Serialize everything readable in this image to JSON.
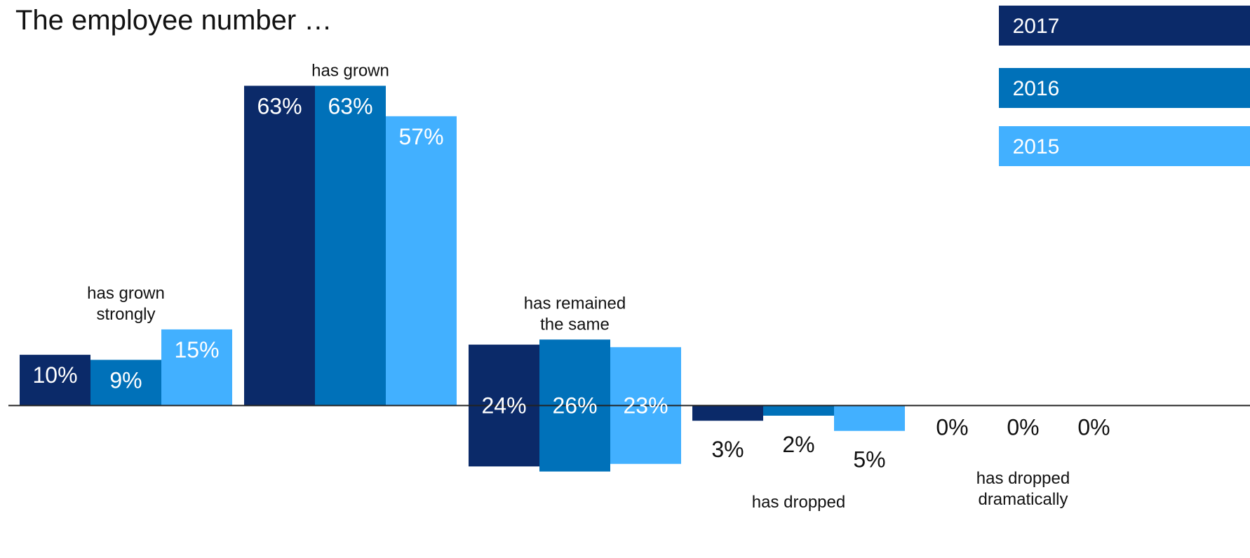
{
  "chart_data": {
    "type": "bar",
    "title": "The employee number …",
    "categories": [
      "has grown strongly",
      "has grown",
      "has remained the same",
      "has dropped",
      "has dropped dramatically"
    ],
    "category_lines": [
      [
        "has grown",
        "strongly"
      ],
      [
        "has grown"
      ],
      [
        "has remained",
        "the same"
      ],
      [
        "has dropped"
      ],
      [
        "has dropped",
        "dramatically"
      ]
    ],
    "series": [
      {
        "name": "2017",
        "color": "#0B2A69",
        "values": [
          10,
          63,
          24,
          3,
          0
        ],
        "labels": [
          "10%",
          "63%",
          "24%",
          "3%",
          "0%"
        ]
      },
      {
        "name": "2016",
        "color": "#0071B9",
        "values": [
          9,
          63,
          26,
          2,
          0
        ],
        "labels": [
          "9%",
          "63%",
          "26%",
          "2%",
          "0%"
        ]
      },
      {
        "name": "2015",
        "color": "#42B0FF",
        "values": [
          15,
          57,
          23,
          5,
          0
        ],
        "labels": [
          "15%",
          "57%",
          "23%",
          "5%",
          "0%"
        ]
      }
    ],
    "label_color_inside": "#ffffff",
    "label_color_outside": "#111111",
    "xlabel": "",
    "ylabel": "",
    "grid": false,
    "legend": "top-right"
  }
}
